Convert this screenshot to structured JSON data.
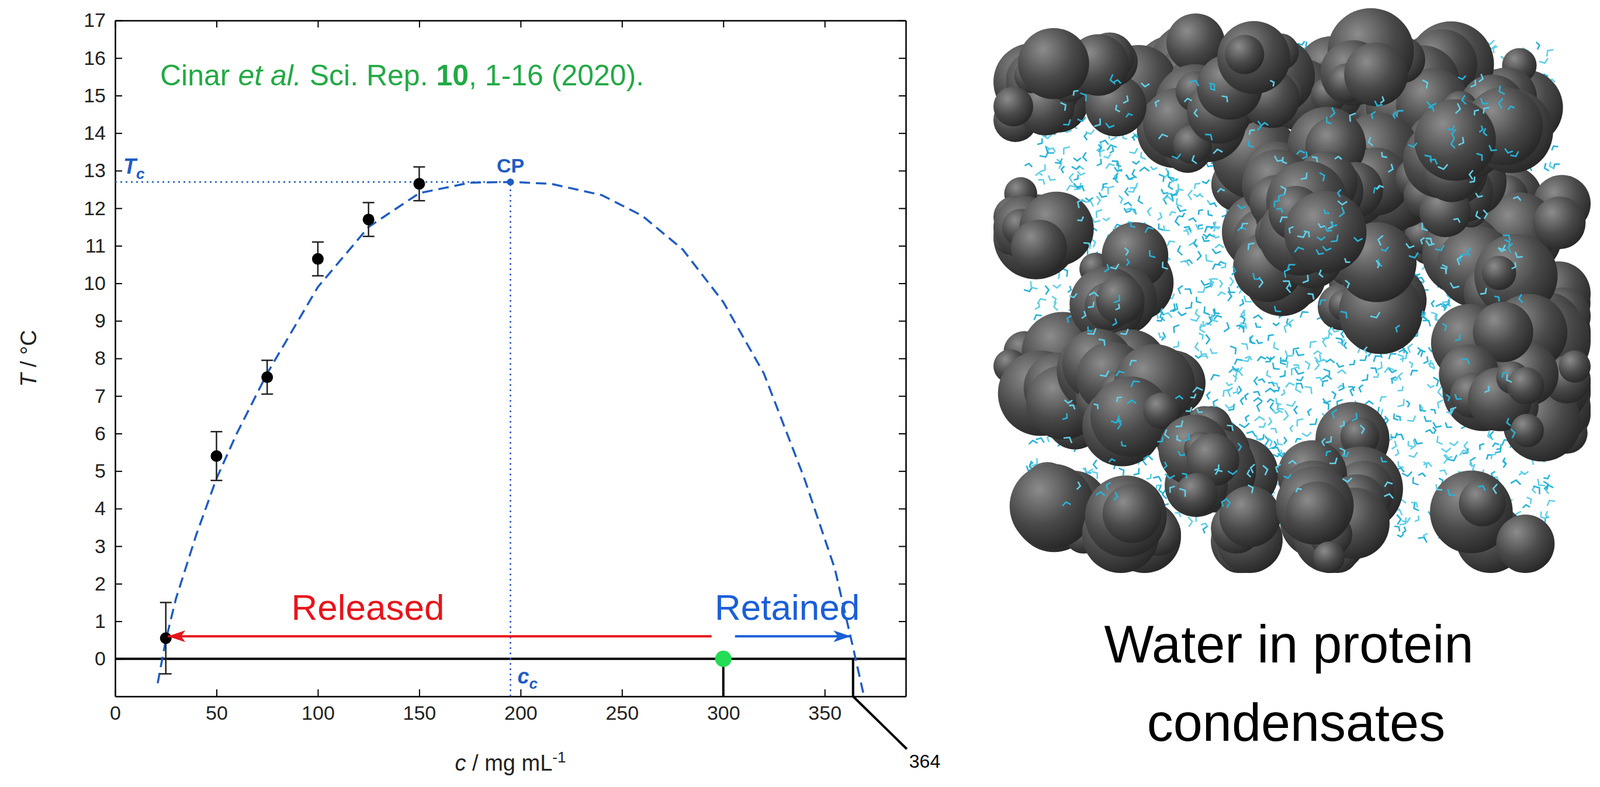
{
  "chart_data": {
    "type": "scatter",
    "citation": [
      {
        "text": "Cinar "
      },
      {
        "text": "et al.",
        "style": "italic"
      },
      {
        "text": " Sci. Rep. "
      },
      {
        "text": "10",
        "style": "bold"
      },
      {
        "text": ", 1-16 (2020)."
      }
    ],
    "x_label": {
      "symbol": "c",
      "unit": " / mg mL",
      "exponent": "-1"
    },
    "y_label": {
      "symbol": "T",
      "unit": " / °C"
    },
    "xlim": [
      0,
      390
    ],
    "xticks": [
      0,
      50,
      100,
      150,
      200,
      250,
      300,
      350
    ],
    "ylim": [
      -1,
      17
    ],
    "yticks": [
      0,
      1,
      2,
      3,
      4,
      5,
      6,
      7,
      8,
      9,
      10,
      11,
      12,
      13,
      14,
      15,
      16,
      17
    ],
    "grid": false,
    "x": [
      25,
      50,
      75,
      100,
      125,
      150
    ],
    "values": [
      0.55,
      5.4,
      7.5,
      10.65,
      11.7,
      12.65
    ],
    "errors": [
      0.95,
      0.65,
      0.45,
      0.45,
      0.45,
      0.45
    ],
    "color": "#000000",
    "marker": "circle",
    "curve": {
      "x": [
        21,
        25,
        30,
        40,
        50,
        60,
        75,
        100,
        125,
        150,
        175,
        195,
        215,
        240,
        260,
        280,
        300,
        320,
        340,
        355,
        364,
        369
      ],
      "values": [
        -0.65,
        0.5,
        1.6,
        3.3,
        4.8,
        6.0,
        7.6,
        9.9,
        11.5,
        12.4,
        12.68,
        12.7,
        12.65,
        12.35,
        11.8,
        10.9,
        9.5,
        7.6,
        4.8,
        2.4,
        0.3,
        -0.9
      ],
      "color": "#1f5cc4",
      "line_style": "dashed"
    },
    "critical_point": {
      "label": "CP",
      "x": 195,
      "y": 12.7,
      "x_label": {
        "symbol": "c",
        "sub": "c"
      },
      "y_label": {
        "symbol": "T",
        "sub": "c"
      },
      "color": "#1f5cc4",
      "line_style": "dotted"
    },
    "reference_line": {
      "y": 0,
      "color": "#000000"
    },
    "state_point": {
      "x": 300,
      "y": 0,
      "color": "#22dd55"
    },
    "arrows": [
      {
        "label": "Released",
        "from": 300,
        "to": 26,
        "y": 0.6,
        "color": "#e8141b"
      },
      {
        "label": "Retained",
        "from": 300,
        "to": 363,
        "y": 0.6,
        "color": "#1a5fd8"
      }
    ],
    "dense_branch": {
      "x": 364
    }
  },
  "image": {
    "caption": "Water in protein condensates"
  }
}
